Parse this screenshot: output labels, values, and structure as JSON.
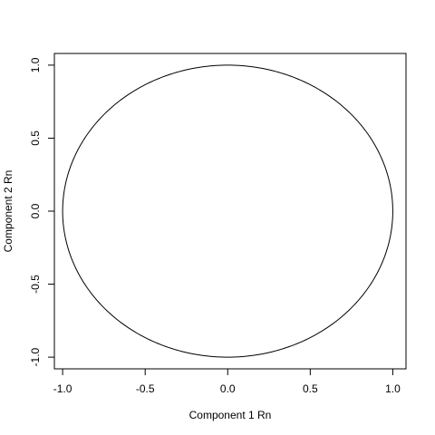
{
  "chart_data": {
    "type": "line",
    "title": "",
    "xlabel": "Component 1 Rn",
    "ylabel": "Component 2 Rn",
    "xlim": [
      -1.05,
      1.08
    ],
    "ylim": [
      -1.08,
      1.08
    ],
    "x_ticks": [
      -1.0,
      -0.5,
      0.0,
      0.5,
      1.0
    ],
    "x_tick_labels": [
      "-1.0",
      "-0.5",
      "0.0",
      "0.5",
      "1.0"
    ],
    "y_ticks": [
      -1.0,
      -0.5,
      0.0,
      0.5,
      1.0
    ],
    "y_tick_labels": [
      "-1.0",
      "-0.5",
      "0.0",
      "0.5",
      "1.0"
    ],
    "grid": false,
    "legend": "none",
    "series": [
      {
        "shape": "circle",
        "center": [
          0,
          0
        ],
        "radius": 1.0,
        "color": "#000000"
      }
    ]
  }
}
